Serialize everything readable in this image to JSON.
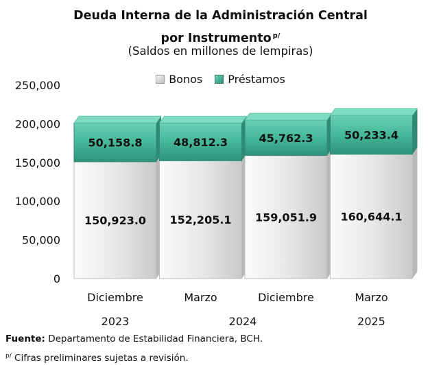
{
  "title_line1": "Deuda Interna de la Administración Central",
  "title_line2": "por Instrumento",
  "title_superscript": "p/",
  "subtitle": "(Saldos en millones de lempiras)",
  "legend": {
    "bonos": "Bonos",
    "prestamos": "Préstamos"
  },
  "footnotes": {
    "source_label": "Fuente:",
    "source_text": " Departamento de Estabilidad Financiera, BCH.",
    "prelim_mark": "p/",
    "prelim_text": " Cifras preliminares sujetas a revisión."
  },
  "colors": {
    "bonos_front": "#e6e6e6",
    "bonos_top": "#f3f3f3",
    "bonos_side": "#b9b9b9",
    "prestamos_front": "#45b79a",
    "prestamos_top": "#7fdcc3",
    "prestamos_side": "#2e8a73"
  },
  "chart_data": {
    "type": "bar",
    "stacked": true,
    "categories": [
      "Diciembre",
      "Marzo",
      "Diciembre",
      "Marzo"
    ],
    "year_labels": [
      "2023",
      "2024",
      "2025"
    ],
    "series": [
      {
        "name": "Bonos",
        "values": [
          150923.0,
          152205.1,
          159051.9,
          160644.1
        ],
        "labels": [
          "150,923.0",
          "152,205.1",
          "159,051.9",
          "160,644.1"
        ]
      },
      {
        "name": "Préstamos",
        "values": [
          50158.8,
          48812.3,
          45762.3,
          50233.4
        ],
        "labels": [
          "50,158.8",
          "48,812.3",
          "45,762.3",
          "50,233.4"
        ]
      }
    ],
    "yticks": [
      "0",
      "50,000",
      "100,000",
      "150,000",
      "200,000",
      "250,000"
    ],
    "ylim": [
      0,
      250000
    ],
    "legend_position": "top-center",
    "grid": false
  }
}
